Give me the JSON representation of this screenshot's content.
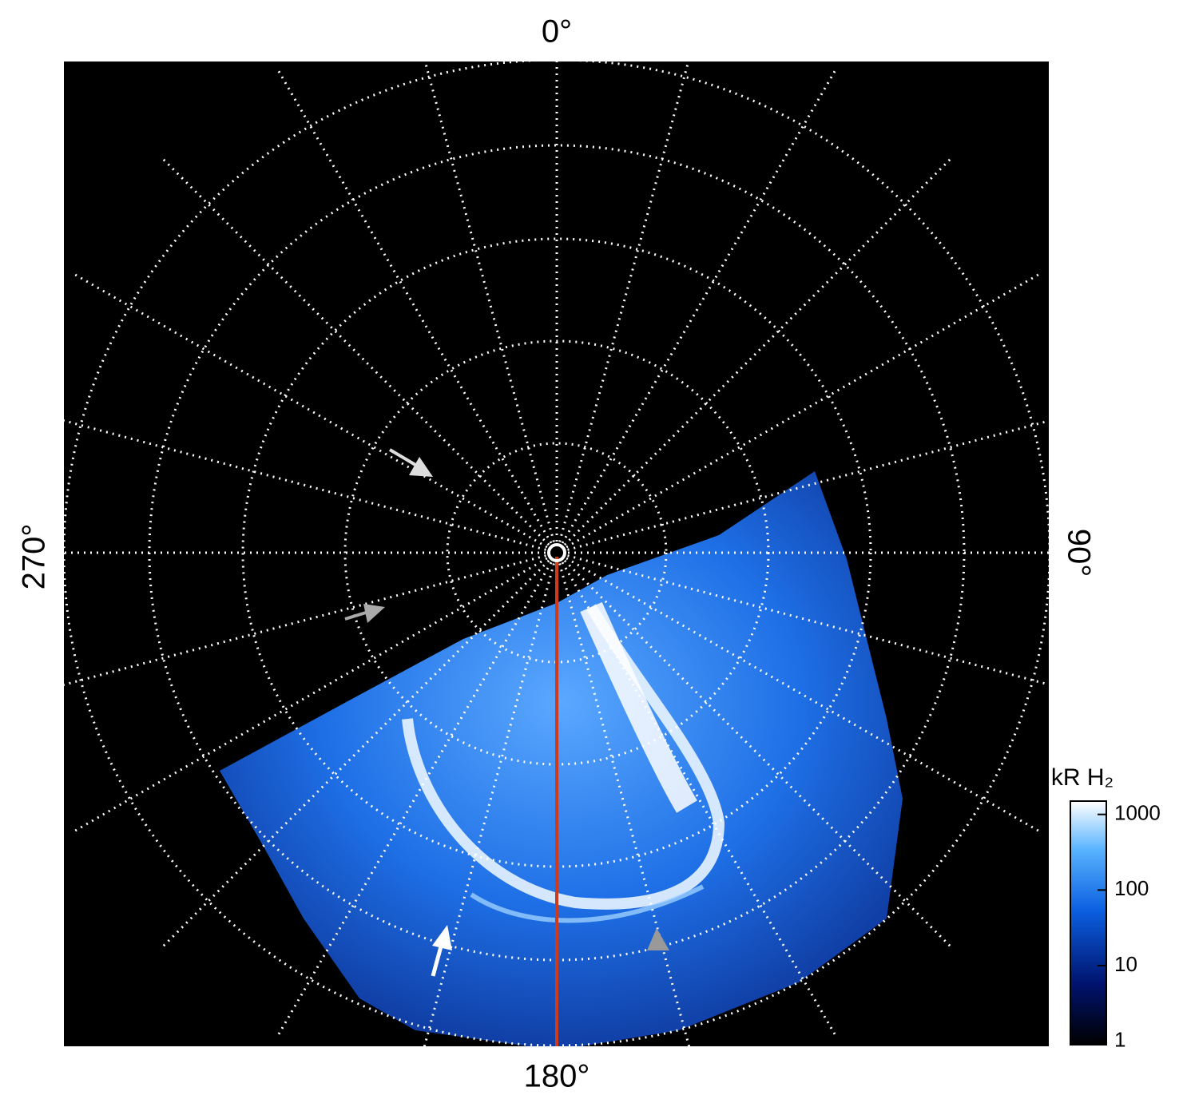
{
  "chart_data": {
    "type": "polar-image",
    "theta_labels": [
      {
        "value": 0,
        "label": "0°"
      },
      {
        "value": 90,
        "label": "90°"
      },
      {
        "value": 180,
        "label": "180°"
      },
      {
        "value": 270,
        "label": "270°"
      }
    ],
    "colorbar": {
      "label": "kR H₂",
      "log": true,
      "clim": [
        0.9,
        1500
      ],
      "ticks": [
        1,
        10,
        100,
        1000
      ]
    }
  }
}
